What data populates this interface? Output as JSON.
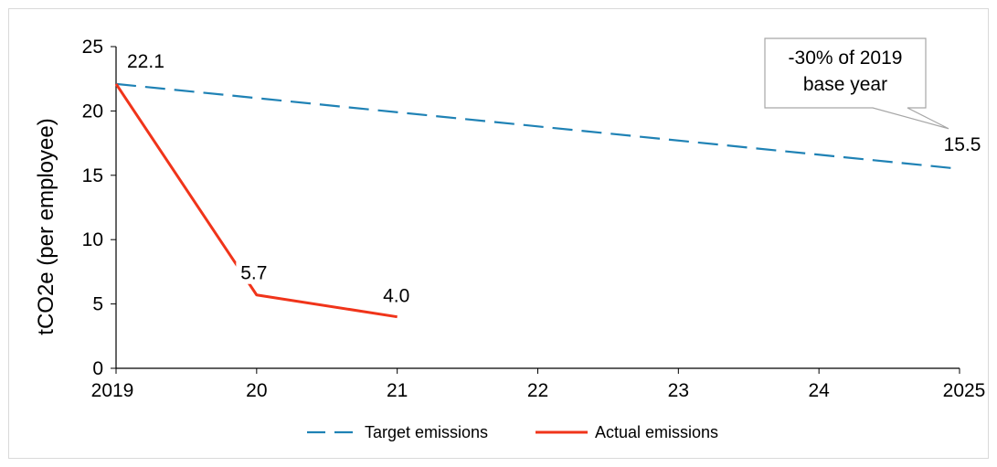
{
  "chart_data": {
    "type": "line",
    "title": "",
    "xlabel": "",
    "ylabel": "tCO2e (per employee)",
    "x": [
      "2019",
      "20",
      "21",
      "22",
      "23",
      "24",
      "2025"
    ],
    "ylim": [
      0,
      25
    ],
    "yticks": [
      "0",
      "5",
      "10",
      "15",
      "20",
      "25"
    ],
    "grid": false,
    "legend_position": "bottom",
    "series": [
      {
        "name": "Target emissions",
        "style": "dashed",
        "color": "#1f82b5",
        "points": [
          {
            "x": 2019,
            "y": 22.1
          },
          {
            "x": 2025,
            "y": 15.5
          }
        ]
      },
      {
        "name": "Actual emissions",
        "style": "solid",
        "color": "#f0341a",
        "points": [
          {
            "x": 2019,
            "y": 22.1
          },
          {
            "x": 2020,
            "y": 5.7
          },
          {
            "x": 2021,
            "y": 4.0
          }
        ]
      }
    ],
    "data_labels": [
      {
        "x": 2019,
        "y": 22.1,
        "text": "22.1"
      },
      {
        "x": 2020,
        "y": 5.7,
        "text": "5.7"
      },
      {
        "x": 2021,
        "y": 4.0,
        "text": "4.0"
      },
      {
        "x": 2025,
        "y": 15.5,
        "text": "15.5"
      }
    ],
    "callout": {
      "lines": [
        "-30% of 2019",
        "base year"
      ],
      "points_to": {
        "x": 2025,
        "y": 15.5
      }
    }
  }
}
